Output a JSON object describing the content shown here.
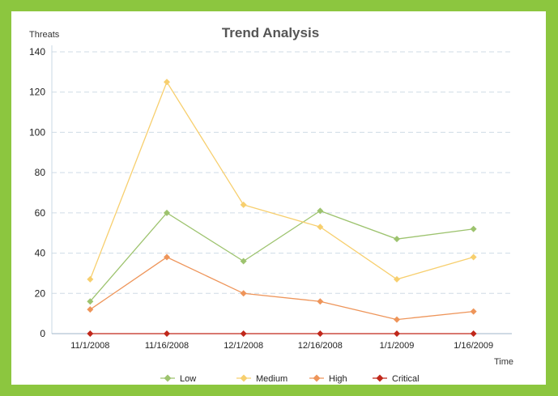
{
  "chart_data": {
    "type": "line",
    "title": "Trend Analysis",
    "ylabel": "Threats",
    "xlabel": "Time",
    "categories": [
      "11/1/2008",
      "11/16/2008",
      "12/1/2008",
      "12/16/2008",
      "1/1/2009",
      "1/16/2009"
    ],
    "ylim": [
      0,
      140
    ],
    "yticks": [
      0,
      20,
      40,
      60,
      80,
      100,
      120,
      140
    ],
    "grid": true,
    "legend_position": "bottom",
    "series": [
      {
        "name": "Low",
        "color": "#9dc36e",
        "values": [
          16,
          60,
          36,
          61,
          47,
          52
        ]
      },
      {
        "name": "Medium",
        "color": "#f7cf6e",
        "values": [
          27,
          125,
          64,
          53,
          27,
          38
        ]
      },
      {
        "name": "High",
        "color": "#ee955a",
        "values": [
          12,
          38,
          20,
          16,
          7,
          11
        ]
      },
      {
        "name": "Critical",
        "color": "#c0281b",
        "values": [
          0,
          0,
          0,
          0,
          0,
          0
        ]
      }
    ]
  }
}
